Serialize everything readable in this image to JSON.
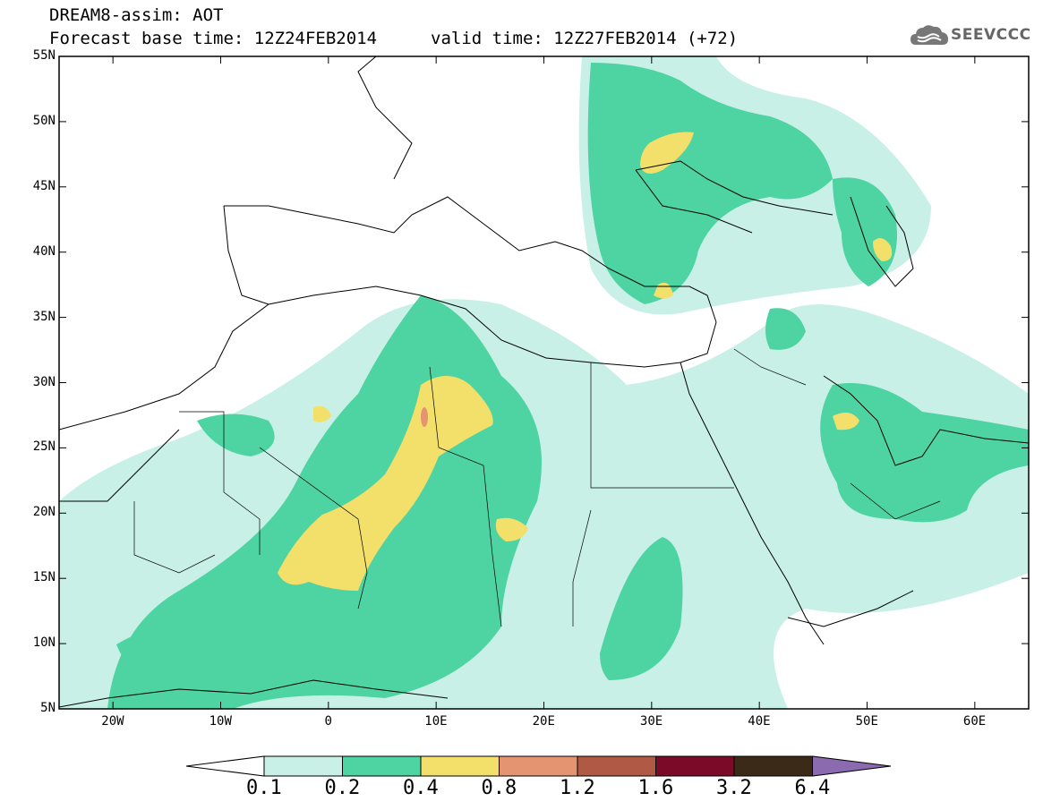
{
  "header": {
    "title_line1": "DREAM8-assim: AOT",
    "title_line2": "Forecast base time: 12Z24FEB2014",
    "valid_time": "valid time: 12Z27FEB2014 (+72)",
    "logo_text": "SEEVCCC",
    "logo_icon": "cloud-icon"
  },
  "map": {
    "lat_range": [
      5,
      55
    ],
    "lon_range": [
      -25,
      65
    ],
    "lat_labels": [
      "55N",
      "50N",
      "45N",
      "40N",
      "35N",
      "30N",
      "25N",
      "20N",
      "15N",
      "10N",
      "5N"
    ],
    "lon_labels": [
      "20W",
      "10W",
      "0",
      "10E",
      "20E",
      "30E",
      "40E",
      "50E",
      "60E"
    ]
  },
  "colorbar": {
    "labels": [
      "0.1",
      "0.2",
      "0.4",
      "0.8",
      "1.2",
      "1.6",
      "3.2",
      "6.4"
    ],
    "colors": [
      "#ffffff",
      "#c8f0e6",
      "#4ed3a3",
      "#f2e06b",
      "#e59471",
      "#b05a46",
      "#7a0a28",
      "#3b2a18",
      "#8b6ab0"
    ]
  }
}
